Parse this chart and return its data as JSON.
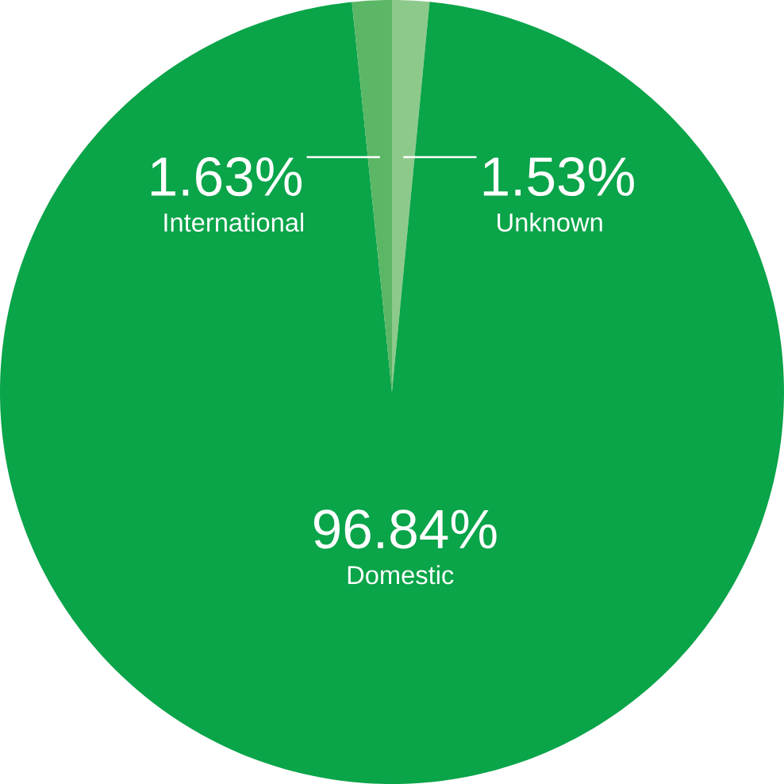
{
  "chart_data": {
    "type": "pie",
    "categories": [
      "Unknown",
      "Domestic",
      "International"
    ],
    "values": [
      1.53,
      96.84,
      1.63
    ],
    "colors": [
      "#8ec98c",
      "#0aa449",
      "#5bb665"
    ],
    "value_labels": [
      "1.53%",
      "96.84%",
      "1.63%"
    ]
  }
}
